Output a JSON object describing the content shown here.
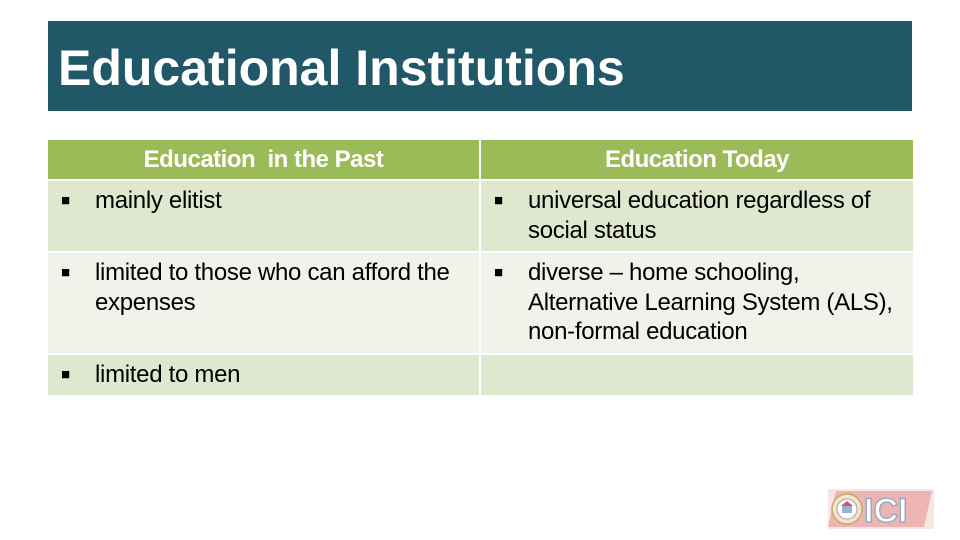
{
  "slide": {
    "title": "Educational Institutions"
  },
  "table": {
    "headers": [
      "Education  in the Past",
      "Education Today"
    ],
    "bullet_glyph": "■",
    "rows": [
      {
        "past": "mainly elitist",
        "today": "universal education regardless of social status"
      },
      {
        "past": "limited to those who can afford the expenses",
        "today": "diverse – home schooling, Alternative Learning System (ALS), non-formal education"
      },
      {
        "past": "limited to men",
        "today": ""
      }
    ]
  },
  "logo": {
    "text": "ICI",
    "icon": "seal-logo-icon"
  },
  "colors": {
    "title_bar": "#215868",
    "header_bg": "#9bbb59",
    "row_odd": "#dfe8cf",
    "row_even": "#eff3e9",
    "logo_accent": "#d9534f"
  }
}
